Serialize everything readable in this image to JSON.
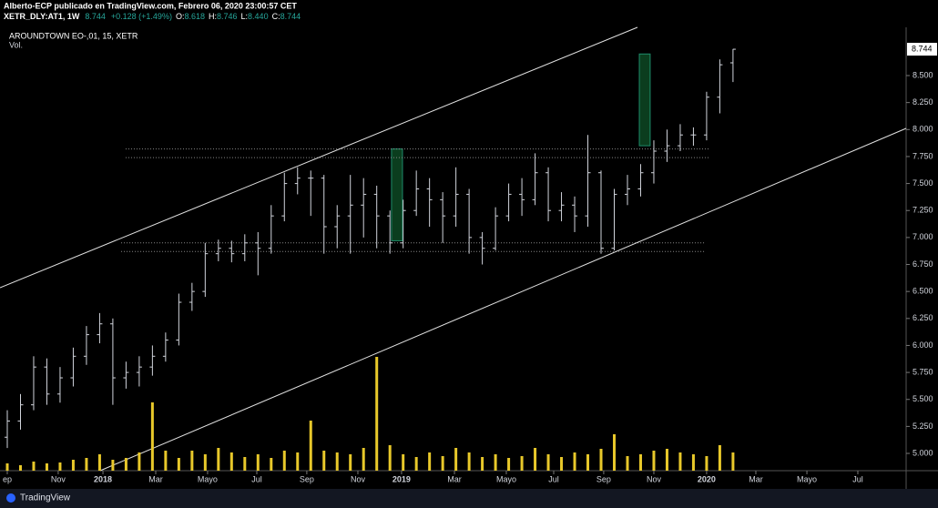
{
  "chart_data": {
    "type": "ohlc",
    "header": {
      "publisher": "Alberto-ECP publicado en TradingView.com, Febrero 06, 2020 23:00:57 CET",
      "symbol": "XETR_DLY:AT1, 1W",
      "price": "8.744",
      "change": "+0.128 (+1.49%)",
      "ohlc": [
        {
          "key": "O:",
          "value": "8.618"
        },
        {
          "key": "H:",
          "value": "8.746"
        },
        {
          "key": "L:",
          "value": "8.440"
        },
        {
          "key": "C:",
          "value": "8.744"
        }
      ]
    },
    "legend_title": "AROUNDTOWN EO-,01, 15, XETR",
    "volume_label": "Vol.",
    "branding": "TradingView",
    "bar_color": "#d1d4dc",
    "volume_color": "#e8c82a",
    "zone_color": "#0b3d1e",
    "zone_edge": "#1e8c6a",
    "line_color": "#e0e0e0",
    "change_color": "#26a69a",
    "open": [
      5.15,
      5.3,
      5.45,
      5.8,
      5.55,
      5.7,
      5.9,
      6.1,
      6.2,
      5.7,
      5.75,
      5.8,
      5.9,
      6.05,
      6.4,
      6.5,
      6.85,
      6.9,
      6.85,
      6.95,
      6.9,
      7.2,
      7.5,
      7.55,
      7.55,
      7.1,
      7.2,
      7.3,
      7.4,
      7.2,
      6.95,
      7.25,
      7.45,
      7.35,
      7.2,
      7.4,
      7.0,
      6.9,
      7.2,
      7.4,
      7.35,
      7.6,
      7.25,
      7.3,
      7.2,
      7.6,
      6.9,
      7.4,
      7.45,
      7.6,
      7.8,
      7.85,
      7.95,
      7.95,
      8.3,
      8.618
    ],
    "high": [
      5.4,
      5.55,
      5.9,
      5.88,
      5.8,
      5.98,
      6.18,
      6.3,
      6.25,
      5.85,
      5.9,
      6.0,
      6.12,
      6.48,
      6.58,
      6.95,
      6.98,
      6.97,
      7.03,
      7.05,
      7.3,
      7.6,
      7.65,
      7.62,
      7.58,
      7.3,
      7.58,
      7.55,
      7.48,
      7.25,
      7.35,
      7.62,
      7.55,
      7.42,
      7.65,
      7.45,
      7.05,
      7.28,
      7.5,
      7.55,
      7.78,
      7.65,
      7.42,
      7.38,
      7.95,
      7.62,
      7.45,
      7.58,
      7.68,
      7.9,
      8.0,
      8.05,
      8.02,
      8.35,
      8.65,
      8.746
    ],
    "low": [
      5.05,
      5.22,
      5.4,
      5.45,
      5.47,
      5.62,
      5.82,
      6.02,
      5.45,
      5.6,
      5.62,
      5.72,
      5.85,
      6.0,
      6.32,
      6.45,
      6.78,
      6.77,
      6.78,
      6.65,
      6.85,
      7.15,
      7.4,
      7.2,
      6.85,
      6.9,
      6.85,
      7.0,
      6.9,
      6.85,
      6.9,
      7.2,
      7.1,
      6.95,
      7.1,
      6.85,
      6.75,
      6.88,
      7.15,
      7.2,
      7.3,
      7.15,
      7.15,
      7.05,
      7.1,
      6.85,
      6.88,
      7.3,
      7.38,
      7.5,
      7.7,
      7.8,
      7.85,
      7.9,
      8.15,
      8.44
    ],
    "close": [
      5.3,
      5.45,
      5.8,
      5.55,
      5.7,
      5.9,
      6.1,
      6.2,
      5.7,
      5.75,
      5.8,
      5.9,
      6.05,
      6.4,
      6.5,
      6.85,
      6.9,
      6.85,
      6.95,
      6.9,
      7.2,
      7.5,
      7.55,
      7.55,
      7.1,
      7.2,
      7.3,
      7.4,
      7.2,
      6.95,
      7.25,
      7.45,
      7.35,
      7.2,
      7.4,
      7.0,
      6.9,
      7.2,
      7.4,
      7.35,
      7.6,
      7.25,
      7.3,
      7.2,
      7.6,
      6.9,
      7.4,
      7.45,
      7.6,
      7.8,
      7.85,
      7.95,
      7.95,
      8.3,
      8.6,
      8.744
    ],
    "volume": [
      8,
      6,
      10,
      8,
      9,
      12,
      14,
      18,
      12,
      14,
      20,
      75,
      22,
      14,
      22,
      18,
      25,
      20,
      15,
      18,
      14,
      22,
      20,
      55,
      22,
      20,
      18,
      25,
      125,
      28,
      18,
      15,
      20,
      16,
      25,
      20,
      15,
      18,
      14,
      16,
      25,
      18,
      15,
      20,
      18,
      24,
      40,
      16,
      18,
      22,
      24,
      20,
      18,
      16,
      28,
      20
    ],
    "ylim": [
      4.84,
      8.947
    ],
    "yticks": [
      {
        "value": 5,
        "label": "5.000"
      },
      {
        "value": 5.25,
        "label": "5.250"
      },
      {
        "value": 5.5,
        "label": "5.500"
      },
      {
        "value": 5.75,
        "label": "5.750"
      },
      {
        "value": 6,
        "label": "6.000"
      },
      {
        "value": 6.25,
        "label": "6.250"
      },
      {
        "value": 6.5,
        "label": "6.500"
      },
      {
        "value": 6.75,
        "label": "6.750"
      },
      {
        "value": 7,
        "label": "7.000"
      },
      {
        "value": 7.25,
        "label": "7.250"
      },
      {
        "value": 7.5,
        "label": "7.500"
      },
      {
        "value": 7.75,
        "label": "7.750"
      },
      {
        "value": 8,
        "label": "8.000"
      },
      {
        "value": 8.25,
        "label": "8.250"
      },
      {
        "value": 8.5,
        "label": "8.500"
      }
    ],
    "xlim": [
      -0.552,
      68.12
    ],
    "xticks": [
      {
        "value": 0,
        "label": "ep"
      },
      {
        "value": 3.86,
        "label": "Nov"
      },
      {
        "value": 7.25,
        "label": "2018"
      },
      {
        "value": 11.25,
        "label": "Mar"
      },
      {
        "value": 15.18,
        "label": "Mayo"
      },
      {
        "value": 18.91,
        "label": "Jul"
      },
      {
        "value": 22.7,
        "label": "Sep"
      },
      {
        "value": 26.57,
        "label": "Nov"
      },
      {
        "value": 29.88,
        "label": "2019"
      },
      {
        "value": 33.89,
        "label": "Mar"
      },
      {
        "value": 37.82,
        "label": "Mayo"
      },
      {
        "value": 41.41,
        "label": "Jul"
      },
      {
        "value": 45.2,
        "label": "Sep"
      },
      {
        "value": 49.0,
        "label": "Nov"
      },
      {
        "value": 53.0,
        "label": "2020"
      },
      {
        "value": 56.73,
        "label": "Mar"
      },
      {
        "value": 60.6,
        "label": "Mayo"
      },
      {
        "value": 64.46,
        "label": "Jul"
      }
    ],
    "trendlines": [
      {
        "x": [
          -0.552,
          47.76
        ],
        "y": [
          6.535,
          8.947
        ]
      },
      {
        "x": [
          7.04,
          68.12
        ],
        "y": [
          4.84,
          8.011
        ]
      }
    ],
    "levels": [
      {
        "value": 7.82,
        "from": 8.97,
        "to": 53.28
      },
      {
        "value": 7.74,
        "from": 8.97,
        "to": 53.28
      },
      {
        "value": 6.95,
        "from": 8.63,
        "to": 52.93
      },
      {
        "value": 6.87,
        "from": 8.63,
        "to": 52.93
      }
    ],
    "zones": [
      {
        "x": [
          29.12,
          29.95
        ],
        "y": [
          6.97,
          7.82
        ]
      },
      {
        "x": [
          47.9,
          48.72
        ],
        "y": [
          7.85,
          8.7
        ]
      }
    ]
  }
}
